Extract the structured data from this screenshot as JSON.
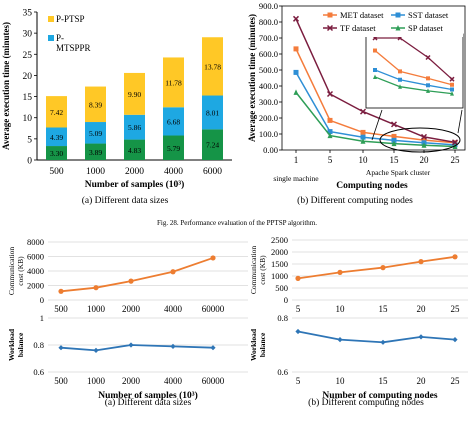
{
  "captions": {
    "fig28_a": "(a)  Different data sizes",
    "fig28_b": "(b)  Different computing nodes",
    "fig28": "Fig. 28.  Performance evaluation of the PPTSP algorithm.",
    "fig29_a": "(a)  Different data sizes",
    "fig29_b": "(b)  Different computing nodes"
  },
  "chart_data": [
    {
      "id": "fig28a",
      "type": "bar",
      "stacked": true,
      "categories": [
        "500",
        "1000",
        "2000",
        "4000",
        "6000"
      ],
      "series": [
        {
          "name": "",
          "color": "#159447",
          "values": [
            3.3,
            3.89,
            4.83,
            5.79,
            7.24
          ]
        },
        {
          "name": "P-MTSPPR",
          "color": "#1ea8e2",
          "values": [
            4.39,
            5.09,
            5.86,
            6.68,
            8.01
          ]
        },
        {
          "name": "P-PTSP",
          "color": "#ffc826",
          "values": [
            7.42,
            8.39,
            9.9,
            11.78,
            13.78
          ]
        }
      ],
      "data_labels": [
        [
          "3.30",
          "3.89",
          "4.83",
          "5.79",
          "7.24"
        ],
        [
          "4.39",
          "5.09",
          "5.86",
          "6.68",
          "8.01"
        ],
        [
          "7.42",
          "8.39",
          "9.90",
          "11.78",
          "13.78"
        ]
      ],
      "legend_labels": [
        "P-PTSP",
        "P-",
        "MTSPPR"
      ],
      "xlabel": "Number of samples (10³)",
      "ylabel": "Average execution time (minutes)",
      "ylim": [
        0,
        35
      ],
      "yticks": [
        "0",
        "5",
        "10",
        "15",
        "20",
        "25",
        "30",
        "35"
      ],
      "legend_position": "top-left"
    },
    {
      "id": "fig28b",
      "type": "line",
      "x": [
        "1",
        "5",
        "10",
        "15",
        "20",
        "25"
      ],
      "series": [
        {
          "name": "MET dataset",
          "color": "#f47c3c",
          "marker": "square",
          "values": [
            632,
            185,
            110,
            85,
            62,
            45
          ]
        },
        {
          "name": "SST dataset",
          "color": "#2e8fd6",
          "marker": "square",
          "values": [
            485,
            115,
            80,
            60,
            45,
            32
          ]
        },
        {
          "name": "TF dataset",
          "color": "#7b1d3f",
          "marker": "x",
          "values": [
            820,
            350,
            240,
            160,
            82,
            48
          ]
        },
        {
          "name": "SP dataset",
          "color": "#2e9e57",
          "marker": "triangle",
          "values": [
            360,
            90,
            55,
            40,
            30,
            22
          ]
        }
      ],
      "xlabel": "Computing nodes",
      "ylabel": "Average execution time (minutes)",
      "ylim": [
        0,
        900
      ],
      "yticks": [
        "0.00",
        "100.0",
        "200.0",
        "300.0",
        "400.0",
        "500.0",
        "600.0",
        "700.0",
        "800.0",
        "900.0"
      ],
      "x_annotations": [
        "single machine",
        "Apache Spark cluster"
      ],
      "legend_position": "top-right",
      "inset": true
    },
    {
      "id": "fig29a_top",
      "type": "line",
      "categories": [
        "500",
        "1000",
        "2000",
        "4000",
        "60000"
      ],
      "series": [
        {
          "name": "",
          "color": "#ed7d31",
          "marker": "circle",
          "values": [
            1200,
            1700,
            2600,
            3900,
            5800
          ]
        }
      ],
      "ylabel": "Communication cost (KB)",
      "ylim": [
        0,
        8000
      ],
      "yticks": [
        "0",
        "2000",
        "4000",
        "6000",
        "8000"
      ]
    },
    {
      "id": "fig29b_top",
      "type": "line",
      "categories": [
        "5",
        "10",
        "15",
        "20",
        "25"
      ],
      "series": [
        {
          "name": "",
          "color": "#ed7d31",
          "marker": "circle",
          "values": [
            900,
            1150,
            1350,
            1600,
            1800
          ]
        }
      ],
      "ylabel": "Communication cost (KB)",
      "ylim": [
        0,
        2500
      ],
      "yticks": [
        "0",
        "500",
        "1000",
        "1500",
        "2000",
        "2500"
      ]
    },
    {
      "id": "fig29a_bottom",
      "type": "line",
      "categories": [
        "500",
        "1000",
        "2000",
        "4000",
        "60000"
      ],
      "series": [
        {
          "name": "",
          "color": "#2e75b6",
          "marker": "diamond",
          "values": [
            0.78,
            0.76,
            0.8,
            0.79,
            0.78
          ]
        }
      ],
      "xlabel": "Number of samples (10³)",
      "ylabel": "Workload balance",
      "ylim": [
        0.6,
        1
      ],
      "yticks": [
        "0.6",
        "0.8",
        "1"
      ]
    },
    {
      "id": "fig29b_bottom",
      "type": "line",
      "categories": [
        "5",
        "10",
        "15",
        "20",
        "25"
      ],
      "series": [
        {
          "name": "",
          "color": "#2e75b6",
          "marker": "diamond",
          "values": [
            0.75,
            0.72,
            0.71,
            0.73,
            0.72
          ]
        }
      ],
      "xlabel": "Number of computing nodes",
      "ylabel": "Workload balance",
      "ylim": [
        0.6,
        0.8
      ],
      "yticks": [
        "0.6",
        "0.8"
      ]
    }
  ]
}
